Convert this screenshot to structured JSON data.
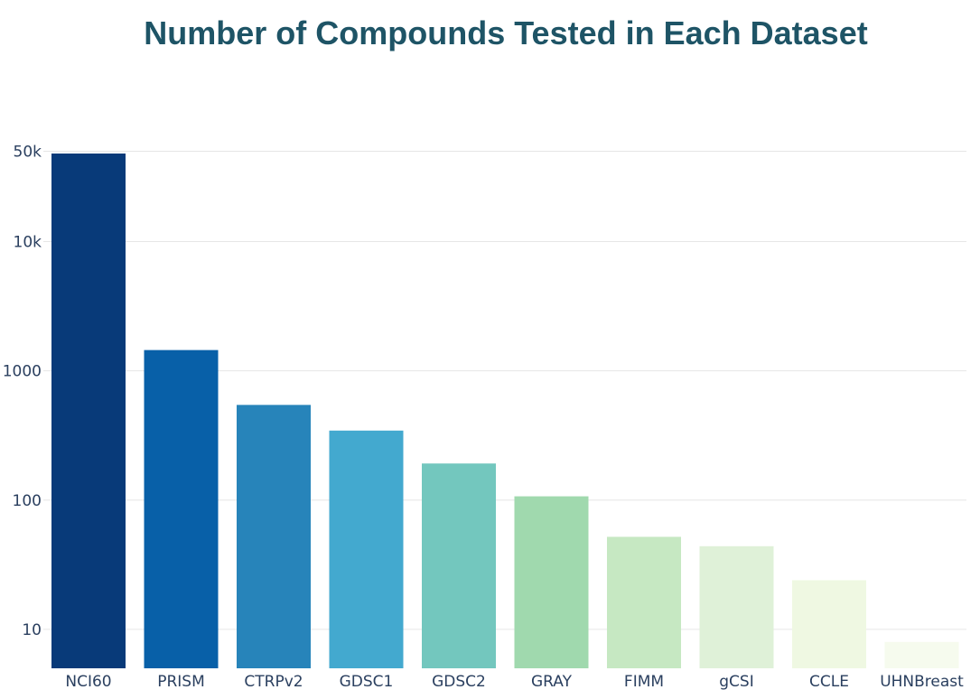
{
  "chart_data": {
    "type": "bar",
    "title": "Number of Compounds Tested in Each Dataset",
    "xlabel": "",
    "ylabel": "",
    "y_scale": "log",
    "ylim": [
      5,
      52000
    ],
    "y_ticks": [
      {
        "value": 10,
        "label": "10"
      },
      {
        "value": 100,
        "label": "100"
      },
      {
        "value": 1000,
        "label": "1000"
      },
      {
        "value": 10000,
        "label": "10k"
      },
      {
        "value": 50000,
        "label": "50k"
      }
    ],
    "grid": true,
    "legend": "none",
    "categories": [
      "NCI60",
      "PRISM",
      "CTRPv2",
      "GDSC1",
      "GDSC2",
      "GRAY",
      "FIMM",
      "gCSI",
      "CCLE",
      "UHNBreast"
    ],
    "values": [
      52000,
      1448,
      545,
      345,
      192,
      107,
      52,
      44,
      24,
      8
    ],
    "colors": [
      "#083a79",
      "#0860a8",
      "#2784ba",
      "#43a9cf",
      "#73c7be",
      "#a0d9ae",
      "#c6e8c2",
      "#dff1d8",
      "#eff8e2",
      "#f6fbee"
    ]
  }
}
